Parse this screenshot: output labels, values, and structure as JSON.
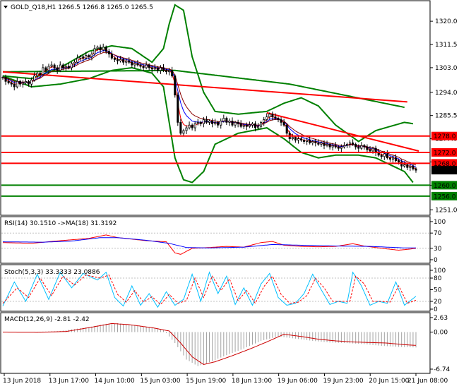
{
  "chart_data": [
    {
      "type": "candlestick",
      "header": "GOLD_Q18,H1  1266.5 1266.8 1265.0 1265.5",
      "last_price": "1265.5",
      "ylim": [
        1249,
        1327
      ],
      "y_ticks": [
        "1320.0",
        "1311.5",
        "1303.0",
        "1294.0",
        "1285.5",
        "1277.0",
        "1268.5",
        "1260.0",
        "1251.0"
      ],
      "bars": 145,
      "close": [
        1299.5,
        1298.0,
        1297.5,
        1297.0,
        1296.0,
        1298.0,
        1297.0,
        1297.5,
        1298.0,
        1297.0,
        1298.5,
        1300.0,
        1301.0,
        1300.5,
        1303.0,
        1302.0,
        1303.5,
        1304.0,
        1303.0,
        1302.0,
        1304.0,
        1303.0,
        1303.5,
        1303.0,
        1304.5,
        1305.0,
        1306.5,
        1307.0,
        1306.5,
        1307.5,
        1307.0,
        1308.0,
        1310.0,
        1310.5,
        1309.5,
        1310.5,
        1309.0,
        1308.0,
        1306.5,
        1306.0,
        1305.5,
        1306.0,
        1305.0,
        1305.5,
        1305.0,
        1304.0,
        1304.5,
        1304.0,
        1303.5,
        1303.0,
        1304.0,
        1303.0,
        1302.5,
        1303.0,
        1302.0,
        1303.0,
        1302.0,
        1301.5,
        1302.0,
        1300.0,
        1293.0,
        1283.0,
        1279.0,
        1280.0,
        1281.0,
        1282.0,
        1281.0,
        1282.5,
        1283.0,
        1282.5,
        1284.0,
        1283.0,
        1283.5,
        1282.5,
        1283.0,
        1282.0,
        1283.5,
        1284.5,
        1283.0,
        1283.5,
        1282.0,
        1283.0,
        1282.5,
        1281.5,
        1282.0,
        1281.5,
        1282.0,
        1282.5,
        1281.0,
        1281.5,
        1283.0,
        1284.0,
        1285.0,
        1286.0,
        1285.0,
        1284.5,
        1284.0,
        1283.0,
        1282.0,
        1279.0,
        1277.0,
        1277.5,
        1276.5,
        1277.0,
        1276.5,
        1276.0,
        1276.5,
        1275.5,
        1276.0,
        1275.5,
        1275.0,
        1275.5,
        1274.5,
        1275.0,
        1274.0,
        1274.5,
        1274.0,
        1273.5,
        1274.0,
        1274.5,
        1275.0,
        1275.5,
        1275.0,
        1274.0,
        1273.5,
        1274.5,
        1274.0,
        1273.0,
        1272.5,
        1273.5,
        1272.0,
        1271.0,
        1270.5,
        1271.5,
        1270.0,
        1269.5,
        1270.0,
        1269.0,
        1268.5,
        1267.0,
        1267.5,
        1266.5,
        1267.0,
        1266.0,
        1265.5
      ],
      "hlines": [
        {
          "value": 1278.0,
          "label": "1278.0",
          "color": "#ff0000"
        },
        {
          "value": 1272.0,
          "label": "1272.0",
          "color": "#ff0000"
        },
        {
          "value": 1268.0,
          "label": "1268.0",
          "color": "#ff0000"
        },
        {
          "value": 1260.0,
          "label": "1260.0",
          "color": "#008000"
        },
        {
          "value": 1256.0,
          "label": "1256.0",
          "color": "#008000"
        }
      ],
      "trendlines": [
        {
          "from": [
            0,
            1301.5
          ],
          "to": [
            141,
            1290.5
          ],
          "color": "#ff0000"
        },
        {
          "from": [
            92,
            1286.5
          ],
          "to": [
            145,
            1272.5
          ],
          "color": "#ff0000"
        }
      ],
      "slow_ma": [
        [
          0,
          1301.5
        ],
        [
          60,
          1302.0
        ],
        [
          100,
          1297.0
        ],
        [
          140,
          1288.5
        ]
      ],
      "bollinger_upper": [
        [
          0,
          1300
        ],
        [
          10,
          1299
        ],
        [
          20,
          1303
        ],
        [
          30,
          1309
        ],
        [
          38,
          1311
        ],
        [
          45,
          1310
        ],
        [
          52,
          1305
        ],
        [
          56,
          1310
        ],
        [
          58,
          1319
        ],
        [
          60,
          1326
        ],
        [
          63,
          1324
        ],
        [
          66,
          1307
        ],
        [
          70,
          1294
        ],
        [
          74,
          1287
        ],
        [
          82,
          1286
        ],
        [
          92,
          1287
        ],
        [
          98,
          1290
        ],
        [
          104,
          1292
        ],
        [
          110,
          1289
        ],
        [
          116,
          1282
        ],
        [
          124,
          1276
        ],
        [
          130,
          1280
        ],
        [
          140,
          1283
        ],
        [
          143,
          1282.5
        ]
      ],
      "bollinger_lower": [
        [
          0,
          1300
        ],
        [
          10,
          1296
        ],
        [
          20,
          1297
        ],
        [
          30,
          1299
        ],
        [
          38,
          1302
        ],
        [
          45,
          1303
        ],
        [
          52,
          1301
        ],
        [
          56,
          1296
        ],
        [
          58,
          1283
        ],
        [
          60,
          1270
        ],
        [
          63,
          1262
        ],
        [
          66,
          1261
        ],
        [
          70,
          1265
        ],
        [
          74,
          1275
        ],
        [
          82,
          1279
        ],
        [
          92,
          1281
        ],
        [
          98,
          1277
        ],
        [
          104,
          1272
        ],
        [
          110,
          1270
        ],
        [
          116,
          1271
        ],
        [
          124,
          1271
        ],
        [
          130,
          1270
        ],
        [
          140,
          1265
        ],
        [
          143,
          1261
        ]
      ]
    },
    {
      "type": "line",
      "title": "RSI(14) 30.1510 ->MA(18) 31.3192",
      "ylim": [
        0,
        100
      ],
      "y_ticks": [
        "100",
        "70",
        "30",
        "0"
      ],
      "series": [
        {
          "name": "RSI",
          "color": "#ff0000",
          "values": [
            [
              0,
              45
            ],
            [
              10,
              43
            ],
            [
              20,
              50
            ],
            [
              30,
              56
            ],
            [
              36,
              65
            ],
            [
              40,
              58
            ],
            [
              50,
              50
            ],
            [
              57,
              47
            ],
            [
              60,
              18
            ],
            [
              62,
              14
            ],
            [
              66,
              30
            ],
            [
              72,
              32
            ],
            [
              78,
              35
            ],
            [
              84,
              33
            ],
            [
              90,
              45
            ],
            [
              94,
              48
            ],
            [
              98,
              38
            ],
            [
              104,
              35
            ],
            [
              110,
              34
            ],
            [
              116,
              35
            ],
            [
              122,
              42
            ],
            [
              126,
              36
            ],
            [
              132,
              30
            ],
            [
              138,
              25
            ],
            [
              142,
              28
            ],
            [
              144,
              30
            ]
          ]
        },
        {
          "name": "MA",
          "color": "#0000ff",
          "values": [
            [
              0,
              47
            ],
            [
              14,
              46
            ],
            [
              24,
              49
            ],
            [
              34,
              58
            ],
            [
              40,
              58
            ],
            [
              50,
              51
            ],
            [
              58,
              43
            ],
            [
              64,
              32
            ],
            [
              72,
              31
            ],
            [
              84,
              33
            ],
            [
              94,
              40
            ],
            [
              104,
              38
            ],
            [
              116,
              36
            ],
            [
              128,
              35
            ],
            [
              140,
              31
            ],
            [
              144,
              31
            ]
          ]
        }
      ]
    },
    {
      "type": "line",
      "title": "Stoch(5,3,3) 33.3333 23.0886",
      "ylim": [
        0,
        100
      ],
      "y_ticks": [
        "100",
        "80",
        "50",
        "20",
        "0"
      ],
      "series": [
        {
          "name": "%K",
          "color": "#00bfff",
          "values": [
            [
              0,
              8
            ],
            [
              4,
              70
            ],
            [
              8,
              20
            ],
            [
              12,
              90
            ],
            [
              16,
              25
            ],
            [
              20,
              95
            ],
            [
              24,
              55
            ],
            [
              28,
              92
            ],
            [
              33,
              75
            ],
            [
              36,
              95
            ],
            [
              39,
              30
            ],
            [
              42,
              8
            ],
            [
              45,
              60
            ],
            [
              48,
              10
            ],
            [
              51,
              40
            ],
            [
              54,
              5
            ],
            [
              57,
              45
            ],
            [
              60,
              10
            ],
            [
              63,
              25
            ],
            [
              66,
              90
            ],
            [
              69,
              20
            ],
            [
              72,
              95
            ],
            [
              75,
              40
            ],
            [
              78,
              85
            ],
            [
              81,
              12
            ],
            [
              84,
              55
            ],
            [
              87,
              10
            ],
            [
              90,
              65
            ],
            [
              93,
              92
            ],
            [
              96,
              30
            ],
            [
              99,
              10
            ],
            [
              102,
              15
            ],
            [
              105,
              40
            ],
            [
              108,
              90
            ],
            [
              111,
              50
            ],
            [
              114,
              12
            ],
            [
              117,
              20
            ],
            [
              120,
              15
            ],
            [
              122,
              95
            ],
            [
              125,
              60
            ],
            [
              128,
              10
            ],
            [
              131,
              20
            ],
            [
              134,
              15
            ],
            [
              137,
              70
            ],
            [
              140,
              10
            ],
            [
              144,
              33
            ]
          ]
        },
        {
          "name": "%D",
          "color": "#ff0000",
          "values": [
            [
              0,
              15
            ],
            [
              5,
              55
            ],
            [
              9,
              30
            ],
            [
              13,
              80
            ],
            [
              17,
              35
            ],
            [
              21,
              85
            ],
            [
              25,
              62
            ],
            [
              29,
              88
            ],
            [
              34,
              80
            ],
            [
              37,
              88
            ],
            [
              40,
              38
            ],
            [
              43,
              18
            ],
            [
              46,
              48
            ],
            [
              49,
              18
            ],
            [
              52,
              32
            ],
            [
              55,
              12
            ],
            [
              58,
              38
            ],
            [
              61,
              15
            ],
            [
              64,
              22
            ],
            [
              67,
              80
            ],
            [
              70,
              30
            ],
            [
              73,
              85
            ],
            [
              76,
              48
            ],
            [
              79,
              78
            ],
            [
              82,
              22
            ],
            [
              85,
              48
            ],
            [
              88,
              15
            ],
            [
              91,
              58
            ],
            [
              94,
              85
            ],
            [
              97,
              38
            ],
            [
              100,
              15
            ],
            [
              103,
              18
            ],
            [
              106,
              35
            ],
            [
              109,
              80
            ],
            [
              112,
              55
            ],
            [
              115,
              20
            ],
            [
              118,
              20
            ],
            [
              121,
              20
            ],
            [
              123,
              85
            ],
            [
              126,
              65
            ],
            [
              129,
              20
            ],
            [
              132,
              20
            ],
            [
              135,
              18
            ],
            [
              138,
              60
            ],
            [
              141,
              15
            ],
            [
              144,
              23
            ]
          ]
        }
      ]
    },
    {
      "type": "bar",
      "title": "MACD(12,26,9) -2.81 -2.42",
      "ylim": [
        -6.74,
        2.63
      ],
      "y_ticks": [
        "2.63",
        "0.00",
        "-6.74"
      ],
      "histogram": [
        [
          0,
          0.0
        ],
        [
          10,
          0.0
        ],
        [
          20,
          0.2
        ],
        [
          30,
          0.9
        ],
        [
          36,
          1.5
        ],
        [
          40,
          1.6
        ],
        [
          48,
          1.1
        ],
        [
          56,
          0.4
        ],
        [
          60,
          -2.0
        ],
        [
          64,
          -5.0
        ],
        [
          68,
          -6.2
        ],
        [
          72,
          -5.5
        ],
        [
          78,
          -4.2
        ],
        [
          84,
          -3.0
        ],
        [
          90,
          -1.6
        ],
        [
          96,
          -0.8
        ],
        [
          102,
          -1.2
        ],
        [
          108,
          -1.6
        ],
        [
          114,
          -1.9
        ],
        [
          120,
          -2.0
        ],
        [
          126,
          -2.2
        ],
        [
          132,
          -2.5
        ],
        [
          138,
          -2.7
        ],
        [
          144,
          -2.8
        ]
      ],
      "signal": [
        [
          0,
          0.0
        ],
        [
          12,
          -0.05
        ],
        [
          22,
          0.1
        ],
        [
          30,
          0.8
        ],
        [
          38,
          1.55
        ],
        [
          44,
          1.35
        ],
        [
          52,
          0.8
        ],
        [
          58,
          0.2
        ],
        [
          62,
          -2.0
        ],
        [
          66,
          -4.5
        ],
        [
          70,
          -5.9
        ],
        [
          74,
          -5.4
        ],
        [
          80,
          -4.3
        ],
        [
          86,
          -3.1
        ],
        [
          92,
          -1.8
        ],
        [
          98,
          -0.4
        ],
        [
          104,
          -0.8
        ],
        [
          110,
          -1.3
        ],
        [
          116,
          -1.6
        ],
        [
          122,
          -1.8
        ],
        [
          128,
          -1.9
        ],
        [
          134,
          -2.0
        ],
        [
          140,
          -2.3
        ],
        [
          144,
          -2.42
        ]
      ],
      "signal_color": "#cc0000"
    }
  ],
  "x_labels": [
    "13 Jun 2018",
    "13 Jun 17:00",
    "14 Jun 10:00",
    "15 Jun 03:00",
    "15 Jun 19:00",
    "18 Jun 13:00",
    "19 Jun 06:00",
    "19 Jun 23:00",
    "20 Jun 15:00",
    "21 Jun 08:00"
  ],
  "colors": {
    "background": "#ffffff",
    "candles": "#000000",
    "bands": "#008000",
    "fast_ma": "#ff0000",
    "mid_ma": "#0000ff",
    "mid_ma2": "#8b0000",
    "price_box": "#000000"
  }
}
